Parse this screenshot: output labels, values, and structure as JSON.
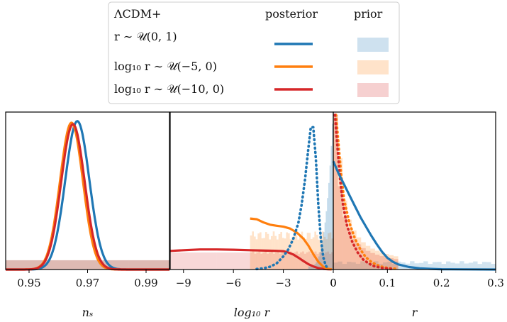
{
  "legend": {
    "header": "ΛCDM+",
    "col_posterior": "posterior",
    "col_prior": "prior",
    "rows": [
      {
        "label": "r ∼ 𝒰(0, 1)",
        "color": "#1f77b4"
      },
      {
        "label": "log₁₀ r ∼ 𝒰(−5, 0)",
        "color": "#ff7f0e"
      },
      {
        "label": "log₁₀ r ∼ 𝒰(−10, 0)",
        "color": "#d62728"
      }
    ]
  },
  "chart_data": [
    {
      "type": "line",
      "xlabel": "nₛ",
      "xlim": [
        0.942,
        0.998
      ],
      "xticks": [
        0.95,
        0.97,
        0.99
      ],
      "xticklabels": [
        "0.95",
        "0.97",
        "0.99"
      ],
      "series": [
        {
          "name": "r ∼ 𝒰(0, 1)",
          "kind": "posterior",
          "color": "#1f77b4",
          "style": "solid",
          "peak_x": 0.9665,
          "sigma": 0.0041,
          "peak_y": 0.96
        },
        {
          "name": "log₁₀ r ∼ 𝒰(−5, 0)",
          "kind": "posterior",
          "color": "#ff7f0e",
          "style": "solid",
          "peak_x": 0.9645,
          "sigma": 0.0039,
          "peak_y": 0.95
        },
        {
          "name": "log₁₀ r ∼ 𝒰(−10, 0)",
          "kind": "posterior",
          "color": "#d62728",
          "style": "solid",
          "peak_x": 0.965,
          "sigma": 0.004,
          "peak_y": 0.94
        }
      ],
      "prior_level": 0.06
    },
    {
      "type": "line",
      "xlabel": "log₁₀ r",
      "xlim": [
        -9.8,
        0
      ],
      "xticks": [
        -9,
        -6,
        -3,
        0
      ],
      "xticklabels": [
        "−9",
        "−6",
        "−3",
        "0"
      ],
      "series": [
        {
          "name": "log₁₀ r ∼ 𝒰(−10, 0)",
          "kind": "posterior",
          "color": "#d62728",
          "style": "solid",
          "x": [
            -9.8,
            -9,
            -8,
            -7,
            -6,
            -5,
            -4,
            -3.5,
            -3,
            -2.7,
            -2.4,
            -2.1,
            -1.8,
            -1.5,
            -1.2,
            -0.9,
            -0.6,
            -0.3,
            -0.1
          ],
          "y": [
            0.12,
            0.125,
            0.13,
            0.13,
            0.128,
            0.125,
            0.122,
            0.121,
            0.119,
            0.11,
            0.097,
            0.077,
            0.055,
            0.035,
            0.02,
            0.009,
            0.004,
            0.002,
            0.001
          ]
        },
        {
          "name": "log₁₀ r ∼ 𝒰(−5, 0)",
          "kind": "posterior",
          "color": "#ff7f0e",
          "style": "solid",
          "x": [
            -5,
            -4.6,
            -4.2,
            -3.8,
            -3.4,
            -3.0,
            -2.6,
            -2.2,
            -1.8,
            -1.5,
            -1.2,
            -0.9,
            -0.6,
            -0.3,
            -0.1
          ],
          "y": [
            0.33,
            0.325,
            0.305,
            0.29,
            0.283,
            0.277,
            0.265,
            0.24,
            0.2,
            0.155,
            0.1,
            0.05,
            0.018,
            0.004,
            0.001
          ]
        },
        {
          "name": "r ∼ 𝒰(0, 1)",
          "kind": "posterior",
          "color": "#1f77b4",
          "style": "dotted",
          "x": [
            -4.6,
            -4.2,
            -3.8,
            -3.4,
            -3.0,
            -2.7,
            -2.4,
            -2.1,
            -1.9,
            -1.7,
            -1.5,
            -1.35,
            -1.2,
            -1.05,
            -0.9,
            -0.75,
            -0.6,
            -0.45,
            -0.3
          ],
          "y": [
            0.003,
            0.008,
            0.018,
            0.04,
            0.085,
            0.13,
            0.2,
            0.3,
            0.42,
            0.58,
            0.78,
            0.92,
            0.92,
            0.72,
            0.42,
            0.2,
            0.08,
            0.025,
            0.006
          ]
        }
      ],
      "prior_red_level": 0.11,
      "prior_orange": {
        "from": -5,
        "level": 0.22
      },
      "prior_blue_spike": {
        "from": -1.5,
        "peak": 1.0
      }
    },
    {
      "type": "line",
      "xlabel": "r",
      "xlim": [
        0,
        0.3
      ],
      "xticks": [
        0,
        0.1,
        0.2,
        0.3
      ],
      "xticklabels": [
        "0",
        "0.1",
        "0.2",
        "0.3"
      ],
      "series": [
        {
          "name": "r ∼ 𝒰(0, 1)",
          "kind": "posterior",
          "color": "#1f77b4",
          "style": "solid",
          "x": [
            0,
            0.01,
            0.02,
            0.03,
            0.04,
            0.05,
            0.06,
            0.07,
            0.08,
            0.09,
            0.1,
            0.11,
            0.12,
            0.14,
            0.16,
            0.18,
            0.2,
            0.25,
            0.3
          ],
          "y": [
            0.7,
            0.62,
            0.55,
            0.48,
            0.41,
            0.34,
            0.28,
            0.22,
            0.165,
            0.115,
            0.075,
            0.05,
            0.033,
            0.016,
            0.008,
            0.004,
            0.002,
            0.001,
            0.0
          ]
        },
        {
          "name": "log₁₀ r ∼ 𝒰(−5, 0)",
          "kind": "posterior",
          "color": "#ff7f0e",
          "style": "dotted",
          "x": [
            0.005,
            0.01,
            0.015,
            0.02,
            0.03,
            0.04,
            0.05,
            0.06,
            0.07,
            0.08,
            0.09,
            0.1,
            0.12
          ],
          "y": [
            1.0,
            0.8,
            0.6,
            0.45,
            0.3,
            0.2,
            0.13,
            0.08,
            0.05,
            0.03,
            0.018,
            0.01,
            0.003
          ]
        },
        {
          "name": "log₁₀ r ∼ 𝒰(−10, 0)",
          "kind": "posterior",
          "color": "#d62728",
          "style": "dotted",
          "x": [
            0.003,
            0.008,
            0.013,
            0.018,
            0.025,
            0.035,
            0.045,
            0.055,
            0.065,
            0.075,
            0.09,
            0.11
          ],
          "y": [
            1.0,
            0.78,
            0.57,
            0.42,
            0.29,
            0.18,
            0.11,
            0.065,
            0.04,
            0.022,
            0.01,
            0.003
          ]
        }
      ],
      "prior_blue_level": 0.045,
      "prior_orange_spike": 1.0
    }
  ]
}
